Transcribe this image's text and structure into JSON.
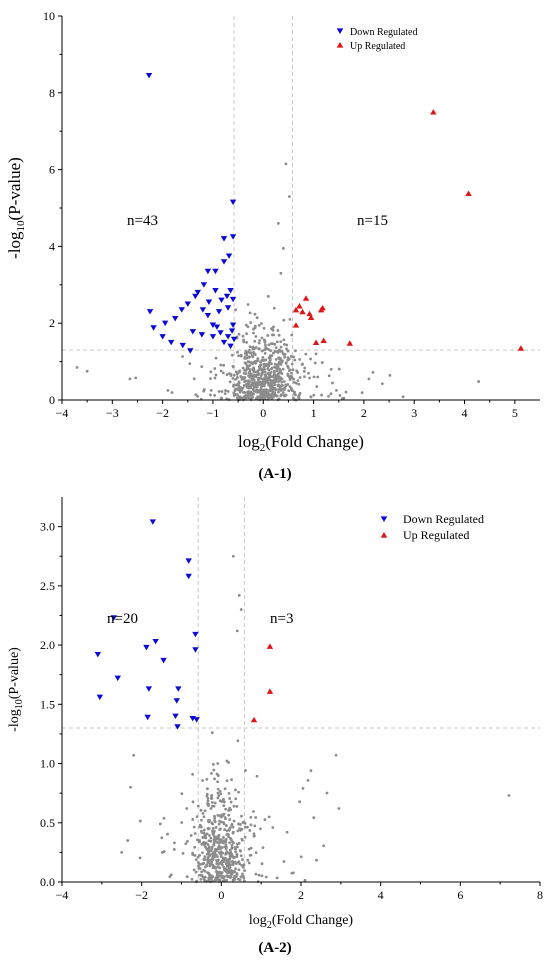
{
  "colors": {
    "down": "#0a0ad6",
    "up": "#e01414",
    "ns": "#8c8c8c",
    "ref_line": "#c8c8c8"
  },
  "panels": [
    {
      "label": "(A-1)",
      "count_down": "n=43",
      "count_up": "n=15",
      "legend": {
        "down": "Down Regulated",
        "up": "Up Regulated"
      },
      "ylabel_pre": "-log",
      "ylabel_sub": "10",
      "ylabel_post": "(P-value)",
      "xlabel_pre": "log",
      "xlabel_sub": "2",
      "xlabel_post": "(Fold Change)"
    },
    {
      "label": "(A-2)",
      "count_down": "n=20",
      "count_up": "n=3",
      "legend": {
        "down": "Down Regulated",
        "up": "Up Regulated"
      },
      "ylabel_pre": "-log",
      "ylabel_sub": "10",
      "ylabel_post": "(P-value)",
      "xlabel_pre": "log",
      "xlabel_sub": "2",
      "xlabel_post": "(Fold Change)"
    }
  ],
  "chart_data": [
    {
      "type": "scatter",
      "xlabel": "log2(Fold Change)",
      "ylabel": "-log10(P-value)",
      "xlim": [
        -4,
        5.5
      ],
      "ylim": [
        0,
        10
      ],
      "xticks": [
        -4,
        -3,
        -2,
        -1,
        0,
        1,
        2,
        3,
        4,
        5
      ],
      "yticks": [
        0,
        2,
        4,
        6,
        8,
        10
      ],
      "tick_format": "int",
      "thresholds": {
        "x": [
          -0.58,
          0.58
        ],
        "y": 1.3
      },
      "legend_position": "top-right",
      "counts": {
        "down": 43,
        "up": 15
      },
      "series": [
        {
          "name": "Down Regulated",
          "marker": "triangle-down",
          "color_key": "down",
          "points": [
            [
              -2.27,
              8.45
            ],
            [
              -0.6,
              5.15
            ],
            [
              -0.6,
              4.25
            ],
            [
              -0.78,
              4.2
            ],
            [
              -0.78,
              3.6
            ],
            [
              -0.95,
              3.35
            ],
            [
              -1.1,
              3.35
            ],
            [
              -0.68,
              3.75
            ],
            [
              -2.25,
              2.3
            ],
            [
              -2.18,
              1.88
            ],
            [
              -2.0,
              1.65
            ],
            [
              -1.83,
              1.5
            ],
            [
              -1.6,
              1.42
            ],
            [
              -1.45,
              1.28
            ],
            [
              -1.95,
              2.0
            ],
            [
              -1.75,
              2.12
            ],
            [
              -1.62,
              2.35
            ],
            [
              -1.5,
              2.5
            ],
            [
              -1.35,
              2.7
            ],
            [
              -1.3,
              2.8
            ],
            [
              -1.18,
              3.0
            ],
            [
              -1.08,
              2.55
            ],
            [
              -0.95,
              2.85
            ],
            [
              -0.83,
              2.6
            ],
            [
              -0.72,
              2.7
            ],
            [
              -0.65,
              2.85
            ],
            [
              -0.6,
              2.62
            ],
            [
              -1.4,
              1.78
            ],
            [
              -1.22,
              1.7
            ],
            [
              -1.1,
              2.2
            ],
            [
              -1.0,
              1.95
            ],
            [
              -0.92,
              1.9
            ],
            [
              -0.85,
              1.75
            ],
            [
              -0.78,
              1.5
            ],
            [
              -0.7,
              1.65
            ],
            [
              -0.65,
              1.4
            ],
            [
              -0.62,
              1.8
            ],
            [
              -0.58,
              1.58
            ],
            [
              -1.0,
              1.65
            ],
            [
              -0.88,
              2.3
            ],
            [
              -0.7,
              2.4
            ],
            [
              -0.6,
              1.95
            ],
            [
              -1.2,
              2.35
            ]
          ]
        },
        {
          "name": "Up Regulated",
          "marker": "triangle-up",
          "color_key": "up",
          "points": [
            [
              3.38,
              7.5
            ],
            [
              4.08,
              5.38
            ],
            [
              5.12,
              1.35
            ],
            [
              1.72,
              1.48
            ],
            [
              1.2,
              1.55
            ],
            [
              1.05,
              1.5
            ],
            [
              1.15,
              2.35
            ],
            [
              1.18,
              2.4
            ],
            [
              0.85,
              2.65
            ],
            [
              0.92,
              2.25
            ],
            [
              0.78,
              2.3
            ],
            [
              0.72,
              2.45
            ],
            [
              0.65,
              2.35
            ],
            [
              0.65,
              1.95
            ],
            [
              0.95,
              2.15
            ]
          ]
        }
      ]
    },
    {
      "type": "scatter",
      "xlabel": "log2(Fold Change)",
      "ylabel": "-log10(P-value)",
      "xlim": [
        -4,
        8
      ],
      "ylim": [
        0,
        3.25
      ],
      "xticks": [
        -4,
        -2,
        0,
        2,
        4,
        6,
        8
      ],
      "yticks": [
        0.0,
        0.5,
        1.0,
        1.5,
        2.0,
        2.5,
        3.0
      ],
      "tick_format": "fixed1",
      "thresholds": {
        "x": [
          -0.58,
          0.58
        ],
        "y": 1.3
      },
      "legend_position": "top-right",
      "counts": {
        "down": 20,
        "up": 3
      },
      "series": [
        {
          "name": "Down Regulated",
          "marker": "triangle-down",
          "color_key": "down",
          "points": [
            [
              -1.72,
              3.04
            ],
            [
              -0.82,
              2.71
            ],
            [
              -0.82,
              2.58
            ],
            [
              -2.7,
              2.23
            ],
            [
              -3.1,
              1.92
            ],
            [
              -3.05,
              1.56
            ],
            [
              -2.6,
              1.72
            ],
            [
              -1.65,
              2.03
            ],
            [
              -1.88,
              1.98
            ],
            [
              -1.45,
              1.87
            ],
            [
              -1.82,
              1.63
            ],
            [
              -1.85,
              1.39
            ],
            [
              -0.65,
              2.09
            ],
            [
              -0.65,
              1.96
            ],
            [
              -1.08,
              1.63
            ],
            [
              -1.12,
              1.53
            ],
            [
              -1.15,
              1.4
            ],
            [
              -1.1,
              1.31
            ],
            [
              -0.72,
              1.38
            ],
            [
              -0.62,
              1.37
            ]
          ]
        },
        {
          "name": "Up Regulated",
          "marker": "triangle-up",
          "color_key": "up",
          "points": [
            [
              1.22,
              1.99
            ],
            [
              1.22,
              1.61
            ],
            [
              0.82,
              1.37
            ]
          ]
        }
      ]
    }
  ]
}
